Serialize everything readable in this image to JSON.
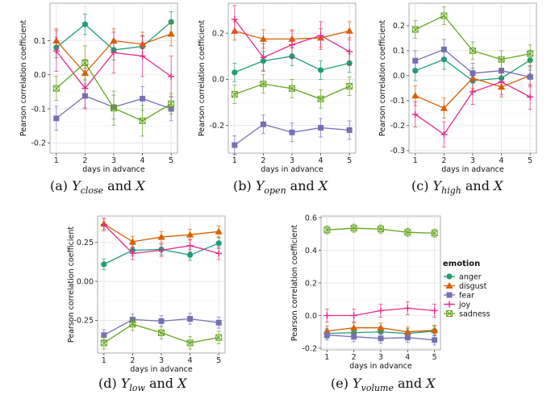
{
  "figure": {
    "xlabel": "days in advance",
    "ylabel": "Pearson correlation coefficient",
    "captions": [
      {
        "label": "(a)",
        "var": "Y",
        "sub": "close",
        "suffix": "and",
        "rhs": "X"
      },
      {
        "label": "(b)",
        "var": "Y",
        "sub": "open",
        "suffix": "and",
        "rhs": "X"
      },
      {
        "label": "(c)",
        "var": "Y",
        "sub": "high",
        "suffix": "and",
        "rhs": "X"
      },
      {
        "label": "(d)",
        "var": "Y",
        "sub": "low",
        "suffix": "and",
        "rhs": "X"
      },
      {
        "label": "(e)",
        "var": "Y",
        "sub": "volume",
        "suffix": "and",
        "rhs": "X"
      }
    ],
    "legend": {
      "title": "emotion",
      "items": [
        {
          "name": "anger",
          "color": "#1b9e77",
          "marker": "circle"
        },
        {
          "name": "disgust",
          "color": "#d95f02",
          "marker": "triangle"
        },
        {
          "name": "fear",
          "color": "#7570b3",
          "marker": "square"
        },
        {
          "name": "joy",
          "color": "#e7298a",
          "marker": "plus"
        },
        {
          "name": "sadness",
          "color": "#66a61e",
          "marker": "xsquare"
        }
      ]
    }
  },
  "chart_data": [
    {
      "type": "line",
      "panel": "a",
      "x": [
        1,
        2,
        3,
        4,
        5
      ],
      "ylim": [
        -0.23,
        0.21
      ],
      "yticks": [
        -0.2,
        -0.1,
        0.0,
        0.1
      ],
      "ytick_labels": [
        "-0.2",
        "-0.1",
        "0.0",
        "0.1"
      ],
      "series": [
        {
          "name": "anger",
          "values": [
            0.08,
            0.148,
            0.073,
            0.083,
            0.155
          ],
          "err": [
            0.03,
            0.03,
            0.03,
            0.03,
            0.03
          ]
        },
        {
          "name": "disgust",
          "values": [
            0.1,
            0.005,
            0.1,
            0.09,
            0.12
          ],
          "err": [
            0.035,
            0.04,
            0.035,
            0.035,
            0.035
          ]
        },
        {
          "name": "fear",
          "values": [
            -0.128,
            -0.062,
            -0.095,
            -0.07,
            -0.1
          ],
          "err": [
            0.035,
            0.035,
            0.035,
            0.035,
            0.035
          ]
        },
        {
          "name": "joy",
          "values": [
            0.07,
            -0.04,
            0.065,
            0.055,
            -0.005
          ],
          "err": [
            0.06,
            0.06,
            0.06,
            0.06,
            0.06
          ]
        },
        {
          "name": "sadness",
          "values": [
            -0.04,
            0.035,
            -0.098,
            -0.135,
            -0.085
          ],
          "err": [
            0.035,
            0.05,
            0.05,
            0.045,
            0.03
          ]
        }
      ]
    },
    {
      "type": "line",
      "panel": "b",
      "x": [
        1,
        2,
        3,
        4,
        5
      ],
      "ylim": [
        -0.32,
        0.33
      ],
      "yticks": [
        -0.2,
        0.0,
        0.2
      ],
      "ytick_labels": [
        "-0.2",
        "0.0",
        "0.2"
      ],
      "series": [
        {
          "name": "anger",
          "values": [
            0.03,
            0.08,
            0.1,
            0.04,
            0.07
          ],
          "err": [
            0.04,
            0.04,
            0.04,
            0.04,
            0.04
          ]
        },
        {
          "name": "disgust",
          "values": [
            0.21,
            0.175,
            0.175,
            0.18,
            0.21
          ],
          "err": [
            0.04,
            0.04,
            0.04,
            0.04,
            0.04
          ]
        },
        {
          "name": "fear",
          "values": [
            -0.285,
            -0.195,
            -0.23,
            -0.21,
            -0.22
          ],
          "err": [
            0.04,
            0.04,
            0.04,
            0.04,
            0.04
          ]
        },
        {
          "name": "joy",
          "values": [
            0.26,
            0.095,
            0.15,
            0.19,
            0.12
          ],
          "err": [
            0.06,
            0.06,
            0.06,
            0.06,
            0.06
          ]
        },
        {
          "name": "sadness",
          "values": [
            -0.065,
            -0.02,
            -0.04,
            -0.085,
            -0.03
          ],
          "err": [
            0.04,
            0.04,
            0.04,
            0.04,
            0.04
          ]
        }
      ]
    },
    {
      "type": "line",
      "panel": "c",
      "x": [
        1,
        2,
        3,
        4,
        5
      ],
      "ylim": [
        -0.31,
        0.29
      ],
      "yticks": [
        -0.3,
        -0.2,
        -0.1,
        0.0,
        0.1,
        0.2
      ],
      "ytick_labels": [
        "-0.3",
        "-0.2",
        "-0.1",
        "0.0",
        "0.1",
        "0.2"
      ],
      "series": [
        {
          "name": "anger",
          "values": [
            0.02,
            0.065,
            -0.02,
            -0.01,
            0.062
          ],
          "err": [
            0.04,
            0.04,
            0.04,
            0.04,
            0.04
          ]
        },
        {
          "name": "disgust",
          "values": [
            -0.08,
            -0.13,
            -0.01,
            -0.045,
            0.0
          ],
          "err": [
            0.04,
            0.04,
            0.04,
            0.04,
            0.04
          ]
        },
        {
          "name": "fear",
          "values": [
            0.06,
            0.105,
            0.01,
            0.02,
            -0.005
          ],
          "err": [
            0.04,
            0.04,
            0.04,
            0.04,
            0.04
          ]
        },
        {
          "name": "joy",
          "values": [
            -0.155,
            -0.235,
            -0.065,
            -0.025,
            -0.085
          ],
          "err": [
            0.05,
            0.05,
            0.05,
            0.05,
            0.05
          ]
        },
        {
          "name": "sadness",
          "values": [
            0.185,
            0.24,
            0.1,
            0.065,
            0.088
          ],
          "err": [
            0.035,
            0.035,
            0.035,
            0.035,
            0.035
          ]
        }
      ]
    },
    {
      "type": "line",
      "panel": "d",
      "x": [
        1,
        2,
        3,
        4,
        5
      ],
      "ylim": [
        -0.46,
        0.42
      ],
      "yticks": [
        -0.25,
        0.0,
        0.25
      ],
      "ytick_labels": [
        "-0.25",
        "0.00",
        "0.25"
      ],
      "series": [
        {
          "name": "anger",
          "values": [
            0.11,
            0.2,
            0.205,
            0.17,
            0.245
          ],
          "err": [
            0.035,
            0.035,
            0.035,
            0.035,
            0.035
          ]
        },
        {
          "name": "disgust",
          "values": [
            0.37,
            0.255,
            0.285,
            0.3,
            0.32
          ],
          "err": [
            0.035,
            0.035,
            0.035,
            0.035,
            0.035
          ]
        },
        {
          "name": "fear",
          "values": [
            -0.345,
            -0.245,
            -0.255,
            -0.24,
            -0.265
          ],
          "err": [
            0.035,
            0.035,
            0.035,
            0.035,
            0.035
          ]
        },
        {
          "name": "joy",
          "values": [
            0.365,
            0.18,
            0.2,
            0.23,
            0.18
          ],
          "err": [
            0.04,
            0.04,
            0.04,
            0.04,
            0.04
          ]
        },
        {
          "name": "sadness",
          "values": [
            -0.395,
            -0.275,
            -0.33,
            -0.395,
            -0.36
          ],
          "err": [
            0.04,
            0.04,
            0.04,
            0.04,
            0.04
          ]
        }
      ]
    },
    {
      "type": "line",
      "panel": "e",
      "x": [
        1,
        2,
        3,
        4,
        5
      ],
      "ylim": [
        -0.21,
        0.61
      ],
      "yticks": [
        -0.2,
        0.0,
        0.2,
        0.4,
        0.6
      ],
      "ytick_labels": [
        "-0.2",
        "0.0",
        "0.2",
        "0.4",
        "0.6"
      ],
      "series": [
        {
          "name": "anger",
          "values": [
            -0.11,
            -0.105,
            -0.1,
            -0.11,
            -0.095
          ],
          "err": [
            0.03,
            0.03,
            0.03,
            0.03,
            0.03
          ]
        },
        {
          "name": "disgust",
          "values": [
            -0.095,
            -0.075,
            -0.075,
            -0.1,
            -0.09
          ],
          "err": [
            0.03,
            0.03,
            0.03,
            0.03,
            0.03
          ]
        },
        {
          "name": "fear",
          "values": [
            -0.12,
            -0.13,
            -0.14,
            -0.135,
            -0.15
          ],
          "err": [
            0.03,
            0.03,
            0.03,
            0.03,
            0.03
          ]
        },
        {
          "name": "joy",
          "values": [
            0.0,
            0.0,
            0.03,
            0.045,
            0.03
          ],
          "err": [
            0.04,
            0.04,
            0.04,
            0.04,
            0.04
          ]
        },
        {
          "name": "sadness",
          "values": [
            0.525,
            0.535,
            0.53,
            0.51,
            0.505
          ],
          "err": [
            0.025,
            0.025,
            0.025,
            0.025,
            0.025
          ]
        }
      ]
    }
  ]
}
